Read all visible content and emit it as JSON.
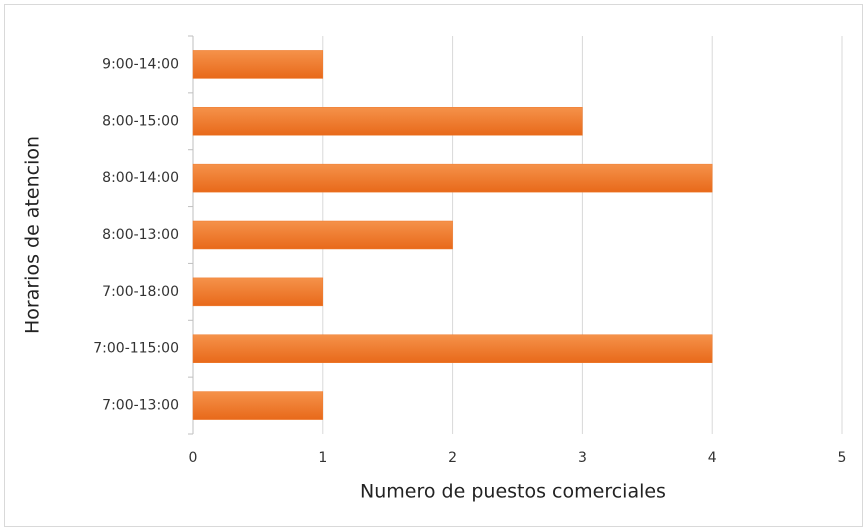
{
  "chart_data": {
    "type": "hbar",
    "x_label": "Numero de puestos comerciales",
    "y_label": "Horarios de atencion",
    "categories": [
      "9:00-14:00",
      "8:00-15:00",
      "8:00-14:00",
      "8:00-13:00",
      "7:00-18:00",
      "7:00-115:00",
      "7:00-13:00"
    ],
    "values": [
      1,
      3,
      4,
      2,
      1,
      4,
      1
    ],
    "color": "#ef7a2c",
    "xlim": [
      0,
      5
    ],
    "xticks": [
      0,
      1,
      2,
      3,
      4,
      5
    ],
    "grid": true
  }
}
